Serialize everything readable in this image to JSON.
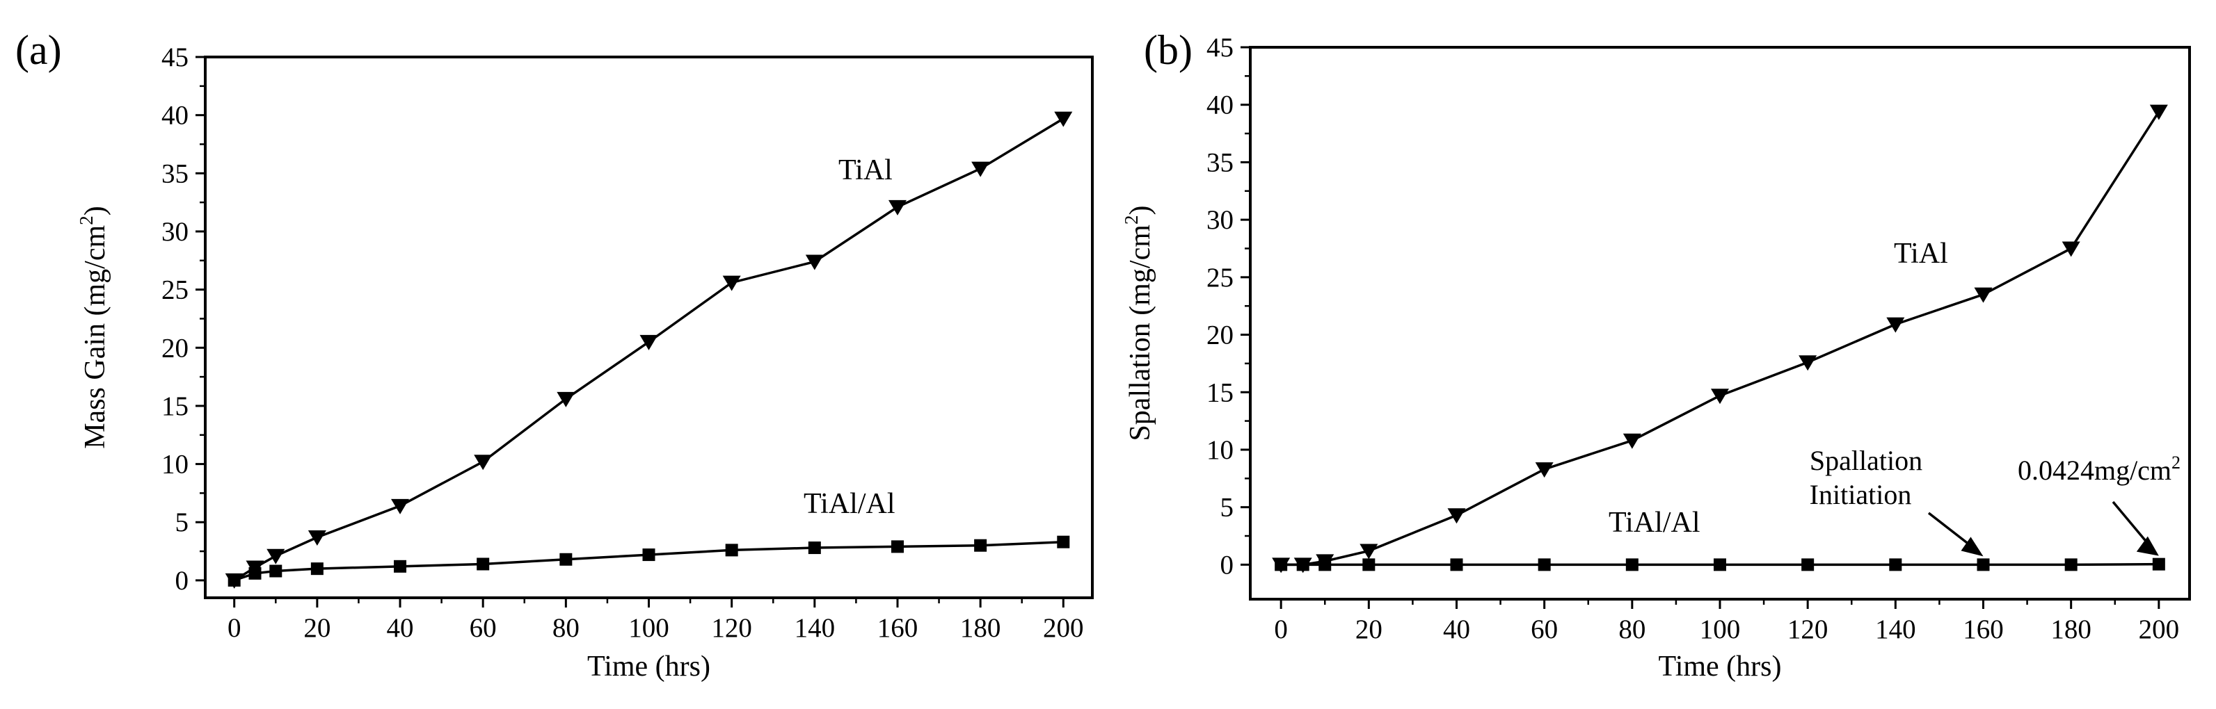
{
  "panels": {
    "a": {
      "label": "(a)"
    },
    "b": {
      "label": "(b)"
    }
  },
  "chart_data": [
    {
      "id": "a",
      "type": "line",
      "title": "",
      "xlabel": "Time (hrs)",
      "ylabel": "Mass Gain (mg/cm²)",
      "xlim": [
        -7,
        207
      ],
      "ylim": [
        -1.5,
        45
      ],
      "xticks": [
        0,
        20,
        40,
        60,
        80,
        100,
        120,
        140,
        160,
        180,
        200
      ],
      "yticks": [
        0,
        5,
        10,
        15,
        20,
        25,
        30,
        35,
        40,
        45
      ],
      "series": [
        {
          "name": "TiAl",
          "marker": "triangle-down",
          "x": [
            0,
            5,
            10,
            20,
            40,
            60,
            80,
            100,
            120,
            140,
            160,
            180,
            200
          ],
          "y": [
            0,
            1.1,
            2.1,
            3.7,
            6.4,
            10.2,
            15.6,
            20.5,
            25.6,
            27.4,
            32.1,
            35.4,
            39.7
          ]
        },
        {
          "name": "TiAl/Al",
          "marker": "square",
          "x": [
            0,
            5,
            10,
            20,
            40,
            60,
            80,
            100,
            120,
            140,
            160,
            180,
            200
          ],
          "y": [
            0,
            0.6,
            0.8,
            1.0,
            1.2,
            1.4,
            1.8,
            2.2,
            2.6,
            2.8,
            2.9,
            3.0,
            3.3
          ]
        }
      ],
      "annotations": [
        {
          "text": "TiAl",
          "series": "TiAl"
        },
        {
          "text": "TiAl/Al",
          "series": "TiAl/Al"
        }
      ]
    },
    {
      "id": "b",
      "type": "line",
      "title": "",
      "xlabel": "Time (hrs)",
      "ylabel": "Spallation (mg/cm²)",
      "xlim": [
        -7,
        207
      ],
      "ylim": [
        -3,
        45
      ],
      "xticks": [
        0,
        20,
        40,
        60,
        80,
        100,
        120,
        140,
        160,
        180,
        200
      ],
      "yticks": [
        0,
        5,
        10,
        15,
        20,
        25,
        30,
        35,
        40,
        45
      ],
      "series": [
        {
          "name": "TiAl",
          "marker": "triangle-down",
          "x": [
            0,
            5,
            10,
            20,
            40,
            60,
            80,
            100,
            120,
            140,
            160,
            180,
            200
          ],
          "y": [
            0,
            0,
            0.3,
            1.2,
            4.3,
            8.3,
            10.8,
            14.7,
            17.6,
            20.9,
            23.5,
            27.5,
            39.4
          ]
        },
        {
          "name": "TiAl/Al",
          "marker": "square",
          "x": [
            0,
            5,
            10,
            20,
            40,
            60,
            80,
            100,
            120,
            140,
            160,
            180,
            200
          ],
          "y": [
            0,
            0,
            0,
            0,
            0,
            0,
            0,
            0,
            0,
            0,
            0,
            0,
            0.0424
          ]
        }
      ],
      "annotations": [
        {
          "text": "TiAl",
          "series": "TiAl"
        },
        {
          "text": "TiAl/Al",
          "series": "TiAl/Al"
        },
        {
          "text": "Spallation",
          "arrow_to_x": 160,
          "arrow_to_y": 0
        },
        {
          "text": "Initiation",
          "arrow_to_x": 160,
          "arrow_to_y": 0
        },
        {
          "text": "0.0424mg/cm²",
          "arrow_to_x": 200,
          "arrow_to_y": 0.0424
        }
      ]
    }
  ]
}
